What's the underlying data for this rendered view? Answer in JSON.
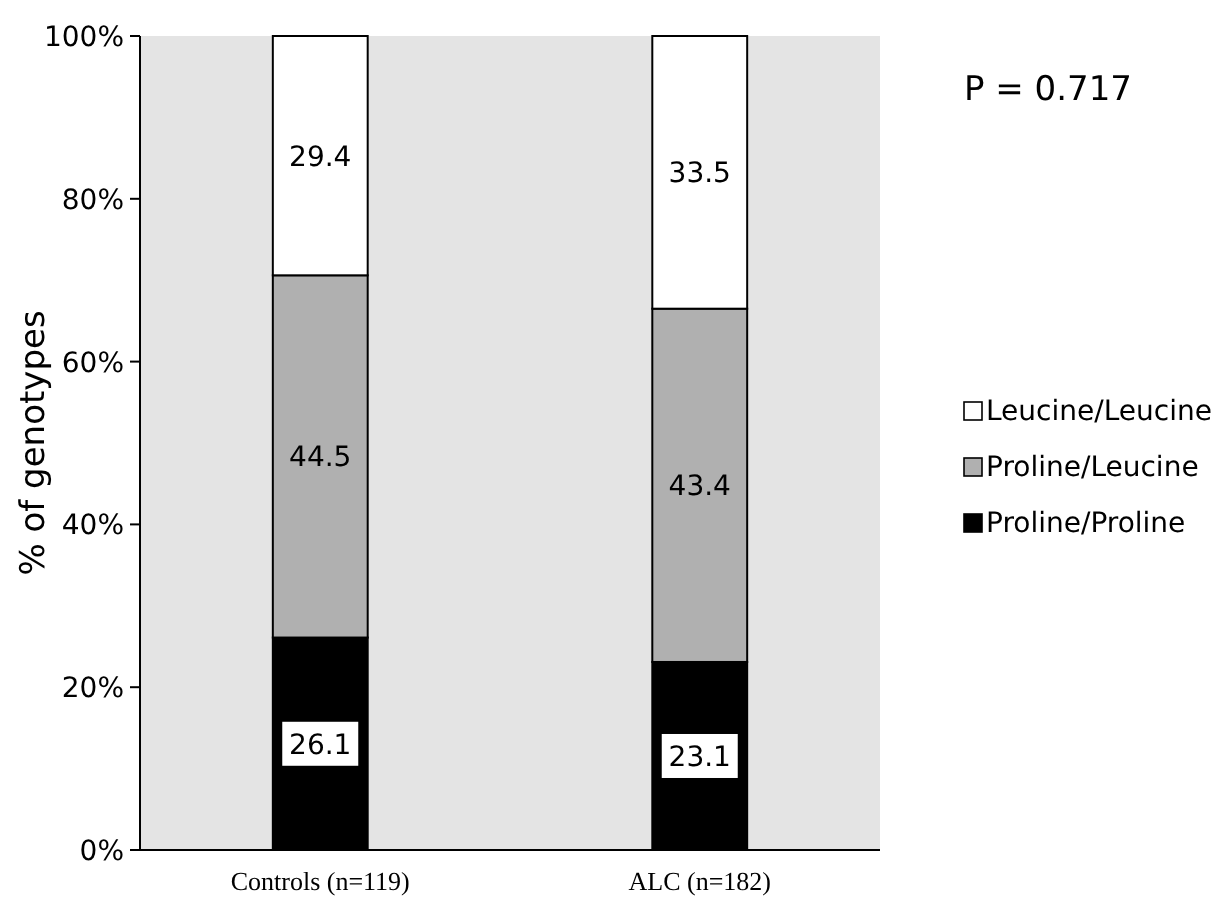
{
  "chart_data": {
    "type": "bar",
    "stacked": true,
    "categories": [
      "Controls (n=119)",
      "ALC (n=182)"
    ],
    "series": [
      {
        "name": "Proline/Proline",
        "color": "#000000",
        "values": [
          26.1,
          23.1
        ]
      },
      {
        "name": "Proline/Leucine",
        "color": "#b0b0b0",
        "values": [
          44.5,
          43.4
        ]
      },
      {
        "name": "Leucine/Leucine",
        "color": "#ffffff",
        "values": [
          29.4,
          33.5
        ]
      }
    ],
    "ylabel": "% of genotypes",
    "ylim": [
      0,
      100
    ],
    "yticks": [
      {
        "value": 0,
        "label": "0%"
      },
      {
        "value": 20,
        "label": "20%"
      },
      {
        "value": 40,
        "label": "40%"
      },
      {
        "value": 60,
        "label": "60%"
      },
      {
        "value": 80,
        "label": "80%"
      },
      {
        "value": 100,
        "label": "100%"
      }
    ],
    "data_labels": true,
    "legend": "right",
    "annotations": [
      "P = 0.717"
    ]
  }
}
